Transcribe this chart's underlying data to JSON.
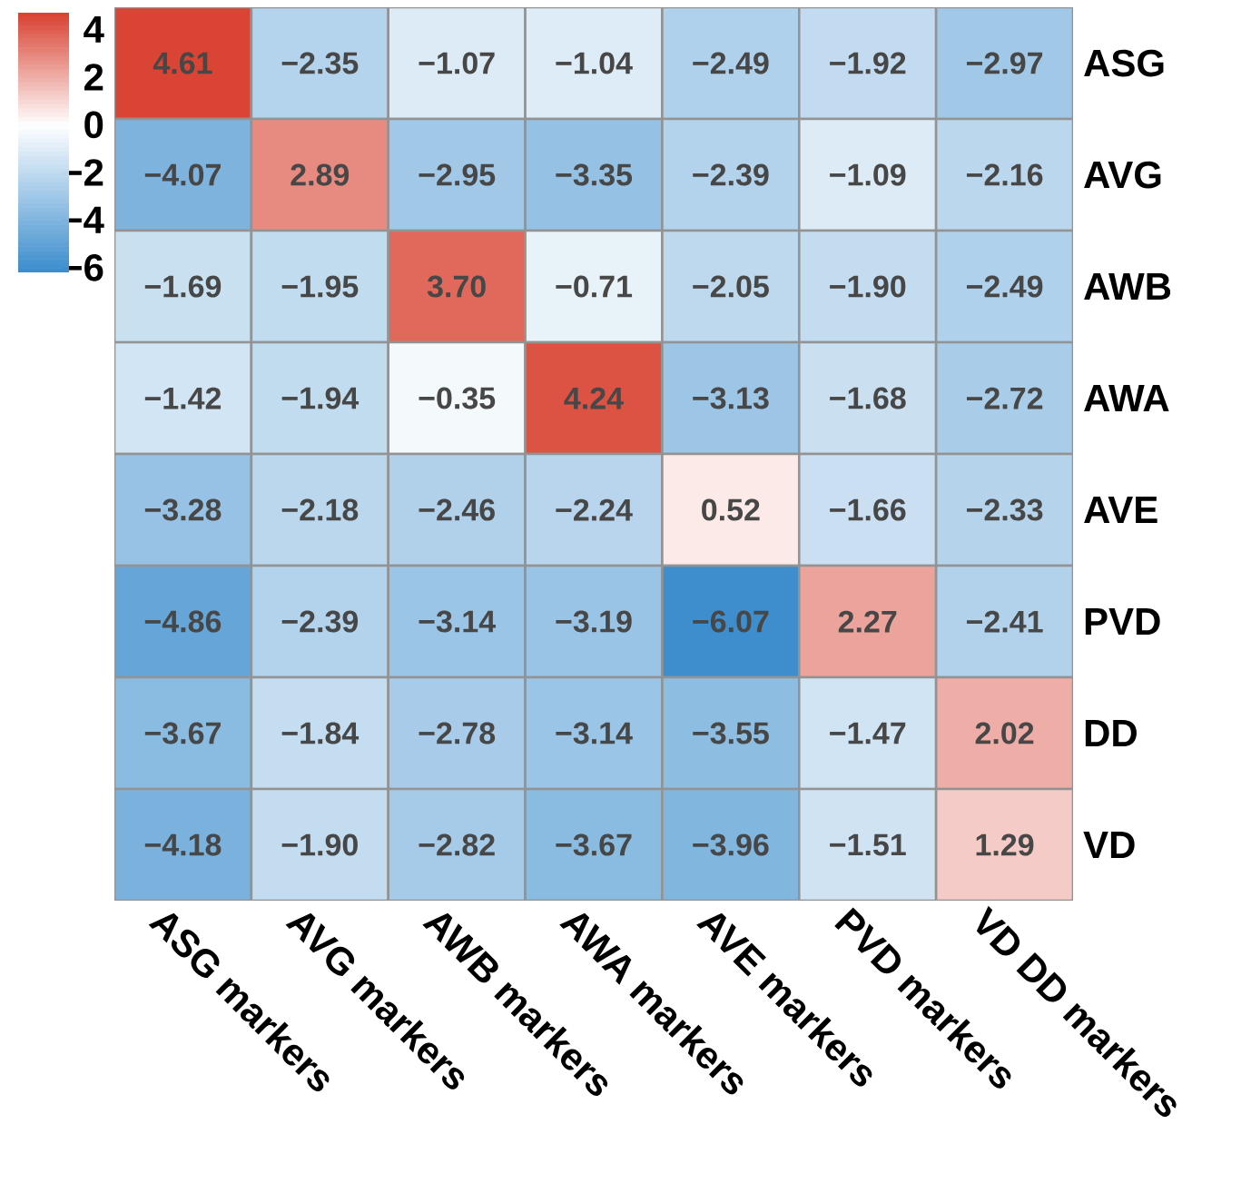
{
  "chart_data": {
    "type": "heatmap",
    "categories": [
      "ASG markers",
      "AVG markers",
      "AWB markers",
      "AWA markers",
      "AVE markers",
      "PVD markers",
      "VD DD markers"
    ],
    "y_categories": [
      "ASG",
      "AVG",
      "AWB",
      "AWA",
      "AVE",
      "PVD",
      "DD",
      "VD"
    ],
    "cells": [
      [
        4.61,
        -2.35,
        -1.07,
        -1.04,
        -2.49,
        -1.92,
        -2.97
      ],
      [
        -4.07,
        2.89,
        -2.95,
        -3.35,
        -2.39,
        -1.09,
        -2.16
      ],
      [
        -1.69,
        -1.95,
        3.7,
        -0.71,
        -2.05,
        -1.9,
        -2.49
      ],
      [
        -1.42,
        -1.94,
        -0.35,
        4.24,
        -3.13,
        -1.68,
        -2.72
      ],
      [
        -3.28,
        -2.18,
        -2.46,
        -2.24,
        0.52,
        -1.66,
        -2.33
      ],
      [
        -4.86,
        -2.39,
        -3.14,
        -3.19,
        -6.07,
        2.27,
        -2.41
      ],
      [
        -3.67,
        -1.84,
        -2.78,
        -3.14,
        -3.55,
        -1.47,
        2.02
      ],
      [
        -4.18,
        -1.9,
        -2.82,
        -3.67,
        -3.96,
        -1.51,
        1.29
      ]
    ],
    "cell_labels": [
      [
        "4.61",
        "−2.35",
        "−1.07",
        "−1.04",
        "−2.49",
        "−1.92",
        "−2.97"
      ],
      [
        "−4.07",
        "2.89",
        "−2.95",
        "−3.35",
        "−2.39",
        "−1.09",
        "−2.16"
      ],
      [
        "−1.69",
        "−1.95",
        "3.70",
        "−0.71",
        "−2.05",
        "−1.90",
        "−2.49"
      ],
      [
        "−1.42",
        "−1.94",
        "−0.35",
        "4.24",
        "−3.13",
        "−1.68",
        "−2.72"
      ],
      [
        "−3.28",
        "−2.18",
        "−2.46",
        "−2.24",
        "0.52",
        "−1.66",
        "−2.33"
      ],
      [
        "−4.86",
        "−2.39",
        "−3.14",
        "−3.19",
        "−6.07",
        "2.27",
        "−2.41"
      ],
      [
        "−3.67",
        "−1.84",
        "−2.78",
        "−3.14",
        "−3.55",
        "−1.47",
        "2.02"
      ],
      [
        "−4.18",
        "−1.90",
        "−2.82",
        "−3.67",
        "−3.96",
        "−1.51",
        "1.29"
      ]
    ],
    "clim": [
      -6.2,
      4.7
    ],
    "cticks": [
      {
        "value": -6,
        "label": "−6"
      },
      {
        "value": -4,
        "label": "−4"
      },
      {
        "value": -2,
        "label": "−2"
      },
      {
        "value": 0,
        "label": "0"
      },
      {
        "value": 2,
        "label": "2"
      },
      {
        "value": 4,
        "label": "4"
      }
    ]
  }
}
